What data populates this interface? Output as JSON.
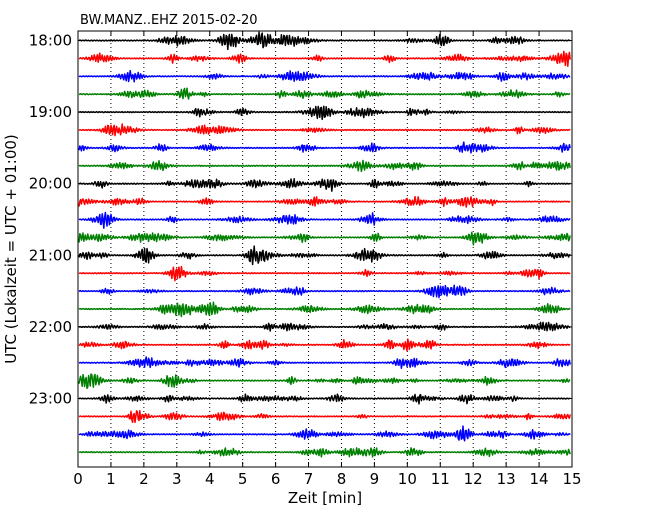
{
  "chart_data": {
    "type": "line",
    "title": "BW.MANZ..EHZ 2015-02-20",
    "xlabel": "Zeit  [min]",
    "ylabel": "UTC (Lokalzeit = UTC + 01:00)",
    "xlim": [
      0,
      15
    ],
    "x_ticks": [
      "0",
      "1",
      "2",
      "3",
      "4",
      "5",
      "6",
      "7",
      "8",
      "9",
      "10",
      "11",
      "12",
      "13",
      "14",
      "15"
    ],
    "y_tick_labels": [
      "18:00",
      "19:00",
      "20:00",
      "21:00",
      "22:00",
      "23:00"
    ],
    "traces_per_hour": 4,
    "trace_colors": [
      "#000000",
      "#ff0000",
      "#0000ff",
      "#008000"
    ],
    "trace_start_times": [
      "18:00",
      "18:15",
      "18:30",
      "18:45",
      "19:00",
      "19:15",
      "19:30",
      "19:45",
      "20:00",
      "20:15",
      "20:30",
      "20:45",
      "21:00",
      "21:15",
      "21:30",
      "21:45",
      "22:00",
      "22:15",
      "22:30",
      "22:45",
      "23:00",
      "23:15",
      "23:30",
      "23:45"
    ],
    "grid": "x-dotted",
    "legend": "none"
  }
}
